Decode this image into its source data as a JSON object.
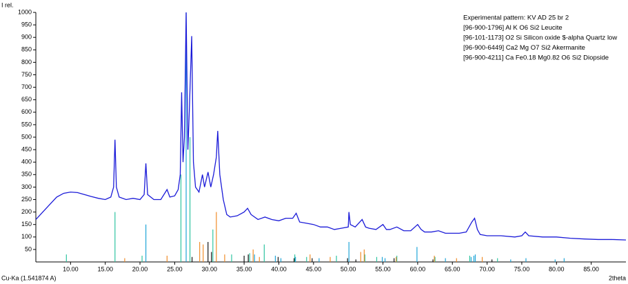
{
  "chart_data": {
    "type": "xrd",
    "y_label": "I rel.",
    "x_label": "2theta",
    "radiation": "Cu-Ka (1.541874 A)",
    "xlim": [
      5,
      90
    ],
    "ylim": [
      0,
      1000
    ],
    "xticks": [
      {
        "value": 10,
        "label": "10.00"
      },
      {
        "value": 15,
        "label": "15.00"
      },
      {
        "value": 20,
        "label": "20.00"
      },
      {
        "value": 25,
        "label": "25.00"
      },
      {
        "value": 30,
        "label": "30.00"
      },
      {
        "value": 35,
        "label": "35.00"
      },
      {
        "value": 40,
        "label": "40.00"
      },
      {
        "value": 45,
        "label": "45.00"
      },
      {
        "value": 50,
        "label": "50.00"
      },
      {
        "value": 55,
        "label": "55.00"
      },
      {
        "value": 60,
        "label": "60.00"
      },
      {
        "value": 65,
        "label": "65.00"
      },
      {
        "value": 70,
        "label": "70.00"
      },
      {
        "value": 75,
        "label": "75.00"
      },
      {
        "value": 80,
        "label": "80.00"
      },
      {
        "value": 85,
        "label": "85.00"
      }
    ],
    "yticks": [
      50,
      100,
      150,
      200,
      250,
      300,
      350,
      400,
      450,
      500,
      550,
      600,
      650,
      700,
      750,
      800,
      850,
      900,
      950,
      1000
    ],
    "legend": "upper right",
    "series": [
      {
        "name": "Experimental pattern: KV AD 25 br 2",
        "color": "#1a1ad8",
        "style": "line",
        "x": [
          5,
          6,
          7,
          8,
          9,
          10,
          11,
          12,
          13,
          14,
          15,
          15.8,
          16.2,
          16.4,
          16.6,
          17,
          18,
          19,
          20,
          20.6,
          20.85,
          21.1,
          22,
          23,
          23.9,
          24.3,
          25,
          25.5,
          25.8,
          26.0,
          26.2,
          26.4,
          26.65,
          26.9,
          27.1,
          27.45,
          27.7,
          28,
          28.5,
          29,
          29.3,
          29.8,
          30.2,
          30.6,
          31.0,
          31.2,
          31.5,
          32,
          32.5,
          33,
          34,
          35,
          35.5,
          36,
          37,
          38,
          39,
          40,
          41,
          42,
          42.5,
          43,
          44,
          45,
          46,
          47,
          48,
          49,
          50,
          50.1,
          50.3,
          51,
          52,
          52.5,
          53,
          54,
          55,
          55.5,
          56,
          57,
          58,
          59,
          60,
          60.5,
          61,
          62,
          63,
          64,
          65,
          66,
          67,
          67.8,
          68.2,
          68.6,
          69,
          70,
          72,
          74,
          75,
          75.5,
          76,
          78,
          80,
          82,
          84,
          86,
          88,
          90
        ],
        "values": [
          170,
          200,
          230,
          260,
          275,
          280,
          278,
          270,
          262,
          255,
          250,
          260,
          300,
          490,
          300,
          260,
          250,
          255,
          250,
          270,
          395,
          270,
          250,
          250,
          290,
          260,
          265,
          290,
          350,
          680,
          400,
          500,
          1000,
          450,
          600,
          905,
          400,
          300,
          280,
          350,
          300,
          360,
          300,
          350,
          420,
          525,
          350,
          250,
          190,
          180,
          185,
          200,
          215,
          190,
          170,
          180,
          170,
          165,
          175,
          175,
          195,
          160,
          155,
          150,
          140,
          140,
          130,
          135,
          140,
          200,
          150,
          140,
          170,
          140,
          135,
          130,
          150,
          130,
          130,
          140,
          125,
          125,
          150,
          130,
          120,
          120,
          125,
          115,
          115,
          115,
          120,
          160,
          175,
          130,
          110,
          105,
          105,
          100,
          105,
          120,
          105,
          100,
          100,
          95,
          92,
          90,
          90,
          88
        ]
      },
      {
        "name": "[96-900-1796] Al K O6 Si2  Leucite",
        "color": "#2ec4a0",
        "style": "sticks",
        "x": [
          9.4,
          16.4,
          20.3,
          25.9,
          27.2,
          30.5,
          33.2,
          35.8,
          37.9,
          42.3,
          44.0,
          48.3,
          52.4,
          54.1,
          57.0,
          62.5,
          67.5,
          71.5
        ],
        "values": [
          30,
          200,
          25,
          350,
          500,
          130,
          30,
          35,
          70,
          30,
          20,
          25,
          30,
          20,
          25,
          20,
          25,
          15
        ]
      },
      {
        "name": "[96-101-1173] O2 Si Silicon oxide $-alpha Quartz low",
        "color": "#1fa5d8",
        "style": "sticks",
        "x": [
          20.85,
          26.65,
          36.5,
          39.5,
          40.3,
          42.4,
          45.8,
          50.1,
          54.9,
          55.3,
          59.9,
          64.0,
          67.7,
          68.1,
          68.3,
          73.4,
          75.6,
          79.8,
          81.1
        ],
        "values": [
          150,
          1000,
          30,
          25,
          15,
          20,
          15,
          80,
          20,
          15,
          60,
          15,
          20,
          25,
          30,
          10,
          15,
          10,
          15
        ]
      },
      {
        "name": "[96-900-6449] Ca2 Mg O7 Si2  Akermanite",
        "color": "#f08c28",
        "style": "sticks",
        "x": [
          17.8,
          23.9,
          28.6,
          29.1,
          31.0,
          32.2,
          36.3,
          37.2,
          44.5,
          47.4,
          51.8,
          52.3,
          56.9,
          62.4,
          65.6,
          69.3
        ],
        "values": [
          15,
          25,
          80,
          70,
          200,
          30,
          50,
          20,
          30,
          20,
          40,
          50,
          20,
          25,
          15,
          20
        ]
      },
      {
        "name": "[96-900-4211] Ca Fe0.18 Mg0.82 O6 Si2  Diopside",
        "color": "#111111",
        "style": "sticks",
        "x": [
          27.5,
          29.8,
          30.3,
          35.0,
          35.6,
          39.9,
          42.2,
          44.8,
          49.9,
          51.1,
          56.6,
          62.2,
          70.7
        ],
        "values": [
          20,
          80,
          40,
          25,
          30,
          20,
          15,
          15,
          15,
          10,
          15,
          10,
          10
        ]
      }
    ]
  }
}
